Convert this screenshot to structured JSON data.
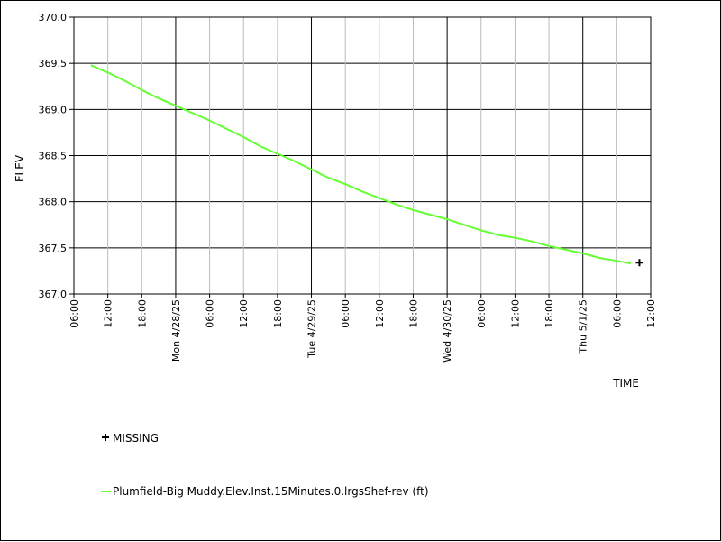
{
  "chart_data": {
    "type": "line",
    "title": "",
    "xlabel": "TIME",
    "ylabel": "ELEV",
    "ylim": [
      367.0,
      370.0
    ],
    "y_ticks": [
      "367.0",
      "367.5",
      "368.0",
      "368.5",
      "369.0",
      "369.5",
      "370.0"
    ],
    "x_range_hours": [
      0,
      102
    ],
    "x_ticks": [
      {
        "h": 0,
        "label": "06:00",
        "major": false
      },
      {
        "h": 6,
        "label": "12:00",
        "major": false
      },
      {
        "h": 12,
        "label": "18:00",
        "major": false
      },
      {
        "h": 18,
        "label": "Mon 4/28/25",
        "major": true
      },
      {
        "h": 24,
        "label": "06:00",
        "major": false
      },
      {
        "h": 30,
        "label": "12:00",
        "major": false
      },
      {
        "h": 36,
        "label": "18:00",
        "major": false
      },
      {
        "h": 42,
        "label": "Tue 4/29/25",
        "major": true
      },
      {
        "h": 48,
        "label": "06:00",
        "major": false
      },
      {
        "h": 54,
        "label": "12:00",
        "major": false
      },
      {
        "h": 60,
        "label": "18:00",
        "major": false
      },
      {
        "h": 66,
        "label": "Wed 4/30/25",
        "major": true
      },
      {
        "h": 72,
        "label": "06:00",
        "major": false
      },
      {
        "h": 78,
        "label": "12:00",
        "major": false
      },
      {
        "h": 84,
        "label": "18:00",
        "major": false
      },
      {
        "h": 90,
        "label": "Thu 5/1/25",
        "major": true
      },
      {
        "h": 96,
        "label": "06:00",
        "major": false
      },
      {
        "h": 102,
        "label": "12:00",
        "major": false
      }
    ],
    "grid": true,
    "legend_placement": "bottom-left",
    "series": [
      {
        "name": "Plumfield-Big Muddy.Elev.Inst.15Minutes.0.lrgsShef-rev (ft)",
        "color": "#66ff33",
        "points": [
          [
            3,
            369.48
          ],
          [
            6,
            369.4
          ],
          [
            9,
            369.31
          ],
          [
            12,
            369.21
          ],
          [
            15,
            369.12
          ],
          [
            18,
            369.04
          ],
          [
            21,
            368.96
          ],
          [
            24,
            368.88
          ],
          [
            27,
            368.79
          ],
          [
            30,
            368.7
          ],
          [
            33,
            368.6
          ],
          [
            36,
            368.52
          ],
          [
            39,
            368.44
          ],
          [
            42,
            368.35
          ],
          [
            45,
            368.26
          ],
          [
            48,
            368.19
          ],
          [
            51,
            368.11
          ],
          [
            54,
            368.04
          ],
          [
            57,
            367.97
          ],
          [
            60,
            367.91
          ],
          [
            63,
            367.86
          ],
          [
            66,
            367.81
          ],
          [
            69,
            367.75
          ],
          [
            72,
            367.69
          ],
          [
            75,
            367.64
          ],
          [
            78,
            367.61
          ],
          [
            81,
            367.57
          ],
          [
            84,
            367.52
          ],
          [
            87,
            367.48
          ],
          [
            90,
            367.44
          ],
          [
            93,
            367.39
          ],
          [
            96,
            367.36
          ],
          [
            98.5,
            367.33
          ]
        ]
      },
      {
        "name": "MISSING",
        "color": "#000000",
        "marker": "plus",
        "points": [
          [
            100,
            367.34
          ]
        ]
      }
    ]
  }
}
